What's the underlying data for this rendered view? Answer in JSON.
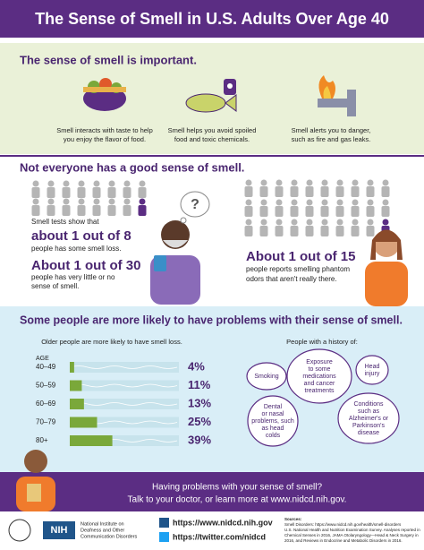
{
  "header": {
    "title": "The Sense of Smell in U.S. Adults Over Age 40"
  },
  "importance": {
    "heading": "The sense of smell is important.",
    "items": [
      [
        "Smell interacts with taste to help",
        "you enjoy the flavor of food."
      ],
      [
        "Smell helps you avoid spoiled",
        "food and toxic chemicals."
      ],
      [
        "Smell alerts you to danger,",
        "such as fire and gas leaks."
      ]
    ]
  },
  "prevalence": {
    "heading": "Not everyone has a good sense of smell.",
    "left": {
      "intro": "Smell tests show that",
      "stat1": "about 1 out of 8",
      "text1": "people has some smell loss.",
      "stat2": "About 1 out of 30",
      "text2": [
        "people has very little or no",
        "sense of smell."
      ],
      "bubble": "?"
    },
    "right": {
      "stat": "About 1 out of 15",
      "text": [
        "people reports smelling phantom",
        "odors that aren't really there."
      ]
    }
  },
  "risk": {
    "heading": "Some people are more likely to have problems with their sense of smell.",
    "smell_loss_chart": {
      "type": "bar",
      "title": "Older people are more likely to have smell loss.",
      "axis_label": "AGE",
      "categories": [
        "40–49",
        "50–59",
        "60–69",
        "70–79",
        "80+"
      ],
      "values": [
        4,
        11,
        13,
        25,
        39
      ],
      "value_labels": [
        "4%",
        "11%",
        "13%",
        "25%",
        "39%"
      ],
      "xlim": [
        0,
        100
      ],
      "color": "#7aa83a"
    },
    "history": {
      "title": "People with a history of:",
      "items": [
        [
          "Smoking"
        ],
        [
          "Exposure",
          "to some",
          "medications",
          "and cancer",
          "treatments"
        ],
        [
          "Head",
          "injury"
        ],
        [
          "Dental",
          "or nasal",
          "problems, such",
          "as head",
          "colds"
        ],
        [
          "Conditions",
          "such as",
          "Alzheimer's or",
          "Parkinson's",
          "disease"
        ]
      ]
    }
  },
  "footer": {
    "lines": [
      "Having problems with your sense of smell?",
      "Talk to your doctor, or learn more at www.nidcd.nih.gov."
    ]
  },
  "credits": {
    "nih": "NIH",
    "institute": [
      "National Institute on",
      "Deafness and Other",
      "Communication Disorders"
    ],
    "website": "https://www.nidcd.nih.gov",
    "twitter": "https://twitter.com/nidcd",
    "sources": [
      "Sources:",
      "Smell Disorders: https://www.nidcd.nih.gov/health/smell-disorders",
      "U.S. National Health and Nutrition Examination Survey. Analyses reported in",
      "Chemical Senses in 2016, JAMA Otolaryngology—Head & Neck Surgery in",
      "2016, and Reviews in Endocrine and Metabolic Disorders in 2016."
    ]
  }
}
